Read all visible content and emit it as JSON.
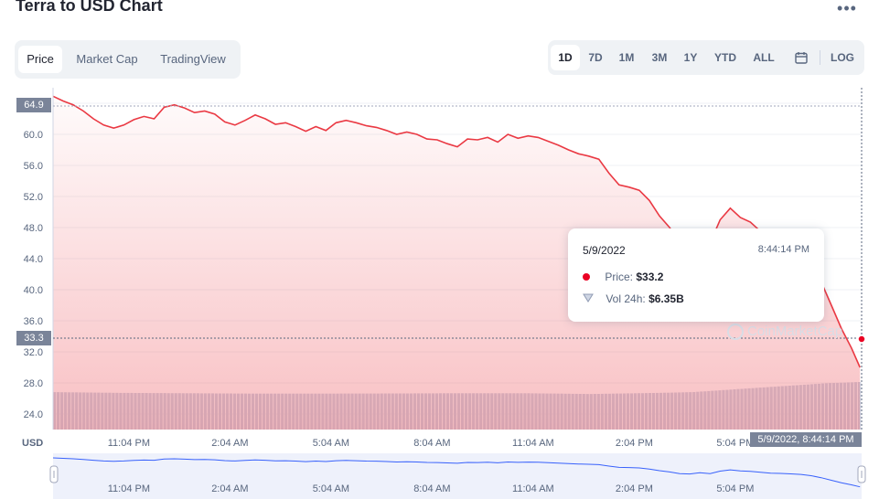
{
  "header": {
    "title": "Terra to USD Chart",
    "more_icon": "more-dots-icon"
  },
  "tabs": [
    "Price",
    "Market Cap",
    "TradingView"
  ],
  "active_tab": "Price",
  "ranges": [
    "1D",
    "7D",
    "1M",
    "3M",
    "1Y",
    "YTD",
    "ALL"
  ],
  "active_range": "1D",
  "calendar_icon": "calendar-icon",
  "log_label": "LOG",
  "colors": {
    "price_line": "#ea3943",
    "accent": "#ea0123",
    "volume": "#cfd6e4",
    "navigator_line": "#3861fb"
  },
  "tooltip": {
    "date": "5/9/2022",
    "time": "8:44:14 PM",
    "price_label": "Price:",
    "price_value": "$33.2",
    "vol_label": "Vol 24h:",
    "vol_value": "$6.35B"
  },
  "watermark": "CoinMarketCap",
  "crosshair": {
    "price_tag": "33.3",
    "time_tag": "5/9/2022, 8:44:14 PM"
  },
  "open_tag": "64.9",
  "chart_data": {
    "type": "area",
    "currency_label": "USD",
    "ylim": [
      22.0,
      66.0
    ],
    "y_ticks": [
      "24.0",
      "28.0",
      "32.0",
      "36.0",
      "40.0",
      "44.0",
      "48.0",
      "52.0",
      "56.0",
      "60.0",
      "64.0"
    ],
    "x_tick_labels": [
      "11:04 PM",
      "2:04 AM",
      "5:04 AM",
      "8:04 AM",
      "11:04 AM",
      "2:04 PM",
      "5:04 PM"
    ],
    "x_range_hours": [
      0,
      24
    ],
    "x_ticks_hours": [
      2.25,
      5.25,
      8.25,
      11.25,
      14.25,
      17.25,
      20.25
    ],
    "series": [
      {
        "hours": [
          0,
          0.3,
          0.6,
          0.9,
          1.2,
          1.5,
          1.8,
          2.1,
          2.4,
          2.7,
          3.0,
          3.3,
          3.6,
          3.9,
          4.2,
          4.5,
          4.8,
          5.1,
          5.4,
          5.7,
          6.0,
          6.3,
          6.6,
          6.9,
          7.2,
          7.5,
          7.8,
          8.1,
          8.4,
          8.7,
          9.0,
          9.3,
          9.6,
          9.9,
          10.2,
          10.5,
          10.8,
          11.1,
          11.4,
          11.7,
          12.0,
          12.3,
          12.6,
          12.9,
          13.2,
          13.5,
          13.8,
          14.1,
          14.4,
          14.7,
          15.0,
          15.3,
          15.6,
          15.9,
          16.2,
          16.5,
          16.8,
          17.1,
          17.4,
          17.7,
          18.0,
          18.3,
          18.6,
          18.9,
          19.2,
          19.5,
          19.8,
          20.1,
          20.4,
          20.7,
          21.0,
          21.3,
          21.6,
          21.9,
          22.2,
          22.5,
          22.8,
          23.1,
          23.4,
          23.7,
          23.95
        ],
        "values": [
          64.9,
          64.3,
          63.8,
          63.0,
          62.0,
          61.2,
          60.8,
          61.2,
          61.9,
          62.3,
          62.0,
          63.5,
          63.8,
          63.4,
          62.8,
          63.0,
          62.6,
          61.6,
          61.2,
          61.8,
          62.5,
          62.0,
          61.3,
          61.5,
          61.0,
          60.4,
          61.0,
          60.5,
          61.5,
          61.8,
          61.5,
          61.1,
          60.9,
          60.5,
          60.0,
          60.3,
          60.0,
          59.4,
          59.3,
          58.8,
          58.4,
          59.4,
          59.3,
          59.6,
          59.0,
          60.0,
          59.5,
          59.8,
          59.6,
          59.1,
          58.6,
          58.0,
          57.5,
          57.2,
          56.8,
          55.0,
          53.5,
          53.2,
          52.8,
          51.5,
          49.5,
          48.0,
          46.0,
          45.5,
          47.0,
          46.0,
          49.0,
          50.5,
          49.3,
          48.7,
          47.5,
          46.5,
          46.2,
          45.6,
          45.0,
          43.5,
          41.0,
          38.0,
          35.0,
          32.5,
          30.0
        ]
      },
      {
        "name": "Vol 24h",
        "hours": [
          0,
          2,
          4,
          6,
          8,
          10,
          12,
          14,
          16,
          18,
          19,
          20,
          21,
          22,
          23,
          23.95
        ],
        "values": [
          5.0,
          4.9,
          4.85,
          4.8,
          4.8,
          4.82,
          4.85,
          4.85,
          4.75,
          4.9,
          5.0,
          5.3,
          5.6,
          5.9,
          6.2,
          6.35
        ]
      }
    ]
  }
}
